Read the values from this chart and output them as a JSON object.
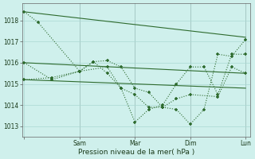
{
  "bg_color": "#cff0ec",
  "grid_color": "#aad8d3",
  "line_color": "#2d6a2d",
  "xlabel": "Pression niveau de la mer( hPa )",
  "ylim": [
    1012.5,
    1018.8
  ],
  "yticks": [
    1013,
    1014,
    1015,
    1016,
    1017,
    1018
  ],
  "xlim": [
    -0.5,
    49
  ],
  "xtick_positions": [
    0,
    12,
    24,
    36,
    48
  ],
  "xtick_labels": [
    "",
    "Sam",
    "Mar",
    "Dim",
    "Lun"
  ],
  "series_straight1": {
    "x": [
      0,
      48
    ],
    "y": [
      1018.4,
      1017.2
    ]
  },
  "series_straight2": {
    "x": [
      0,
      48
    ],
    "y": [
      1016.0,
      1015.5
    ]
  },
  "series_straight3": {
    "x": [
      0,
      48
    ],
    "y": [
      1015.2,
      1014.8
    ]
  },
  "series_jagged1": {
    "x": [
      0,
      3,
      12,
      15,
      18,
      21,
      24,
      27,
      30,
      33,
      36,
      39,
      42,
      45,
      48
    ],
    "y": [
      1018.4,
      1017.9,
      1015.6,
      1016.05,
      1016.1,
      1015.8,
      1014.8,
      1014.6,
      1013.9,
      1013.8,
      1013.1,
      1013.8,
      1016.4,
      1016.3,
      1017.1
    ]
  },
  "series_jagged2": {
    "x": [
      0,
      6,
      12,
      18,
      21,
      24,
      27,
      30,
      33,
      36,
      39,
      42,
      45,
      48
    ],
    "y": [
      1016.0,
      1015.2,
      1015.6,
      1015.8,
      1014.8,
      1013.2,
      1013.8,
      1014.0,
      1015.0,
      1015.8,
      1015.8,
      1014.5,
      1016.4,
      1016.4
    ]
  },
  "series_jagged3": {
    "x": [
      0,
      6,
      12,
      15,
      18,
      21,
      24,
      27,
      30,
      33,
      36,
      42,
      45,
      48
    ],
    "y": [
      1015.2,
      1015.3,
      1015.6,
      1016.05,
      1015.5,
      1014.8,
      1014.5,
      1013.9,
      1013.9,
      1014.3,
      1014.5,
      1014.4,
      1015.8,
      1015.5
    ]
  }
}
